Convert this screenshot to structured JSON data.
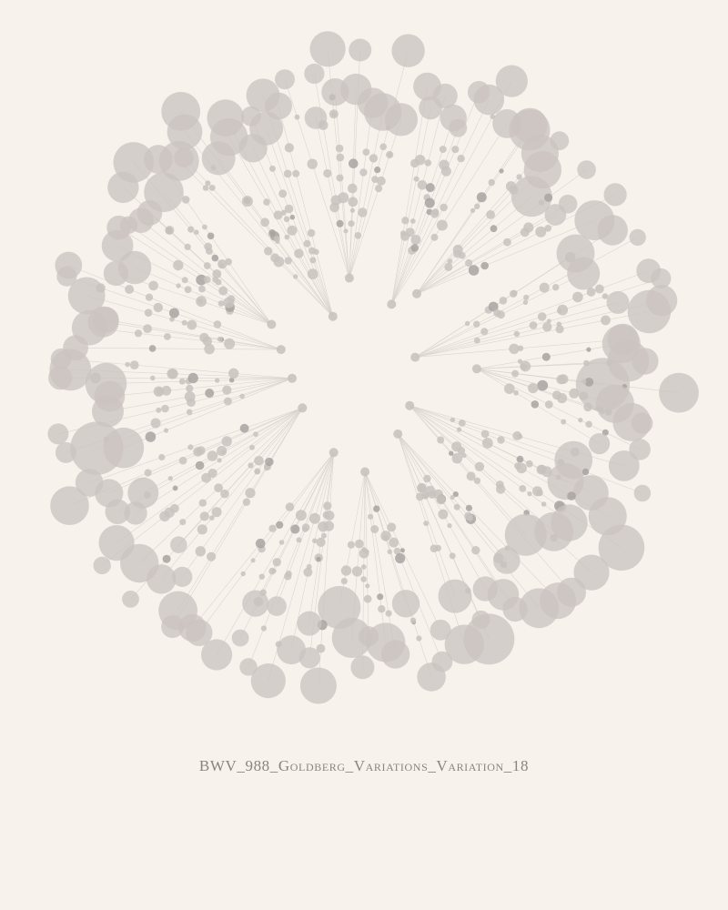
{
  "caption": "BWV_988_Goldberg_Variations_Variation_18",
  "colors": {
    "background": "#f8f2ed",
    "node": "#c9c3c0",
    "node_dark": "#a9a3a1",
    "spoke": "#d8d1cd",
    "caption": "#8a8481"
  }
}
